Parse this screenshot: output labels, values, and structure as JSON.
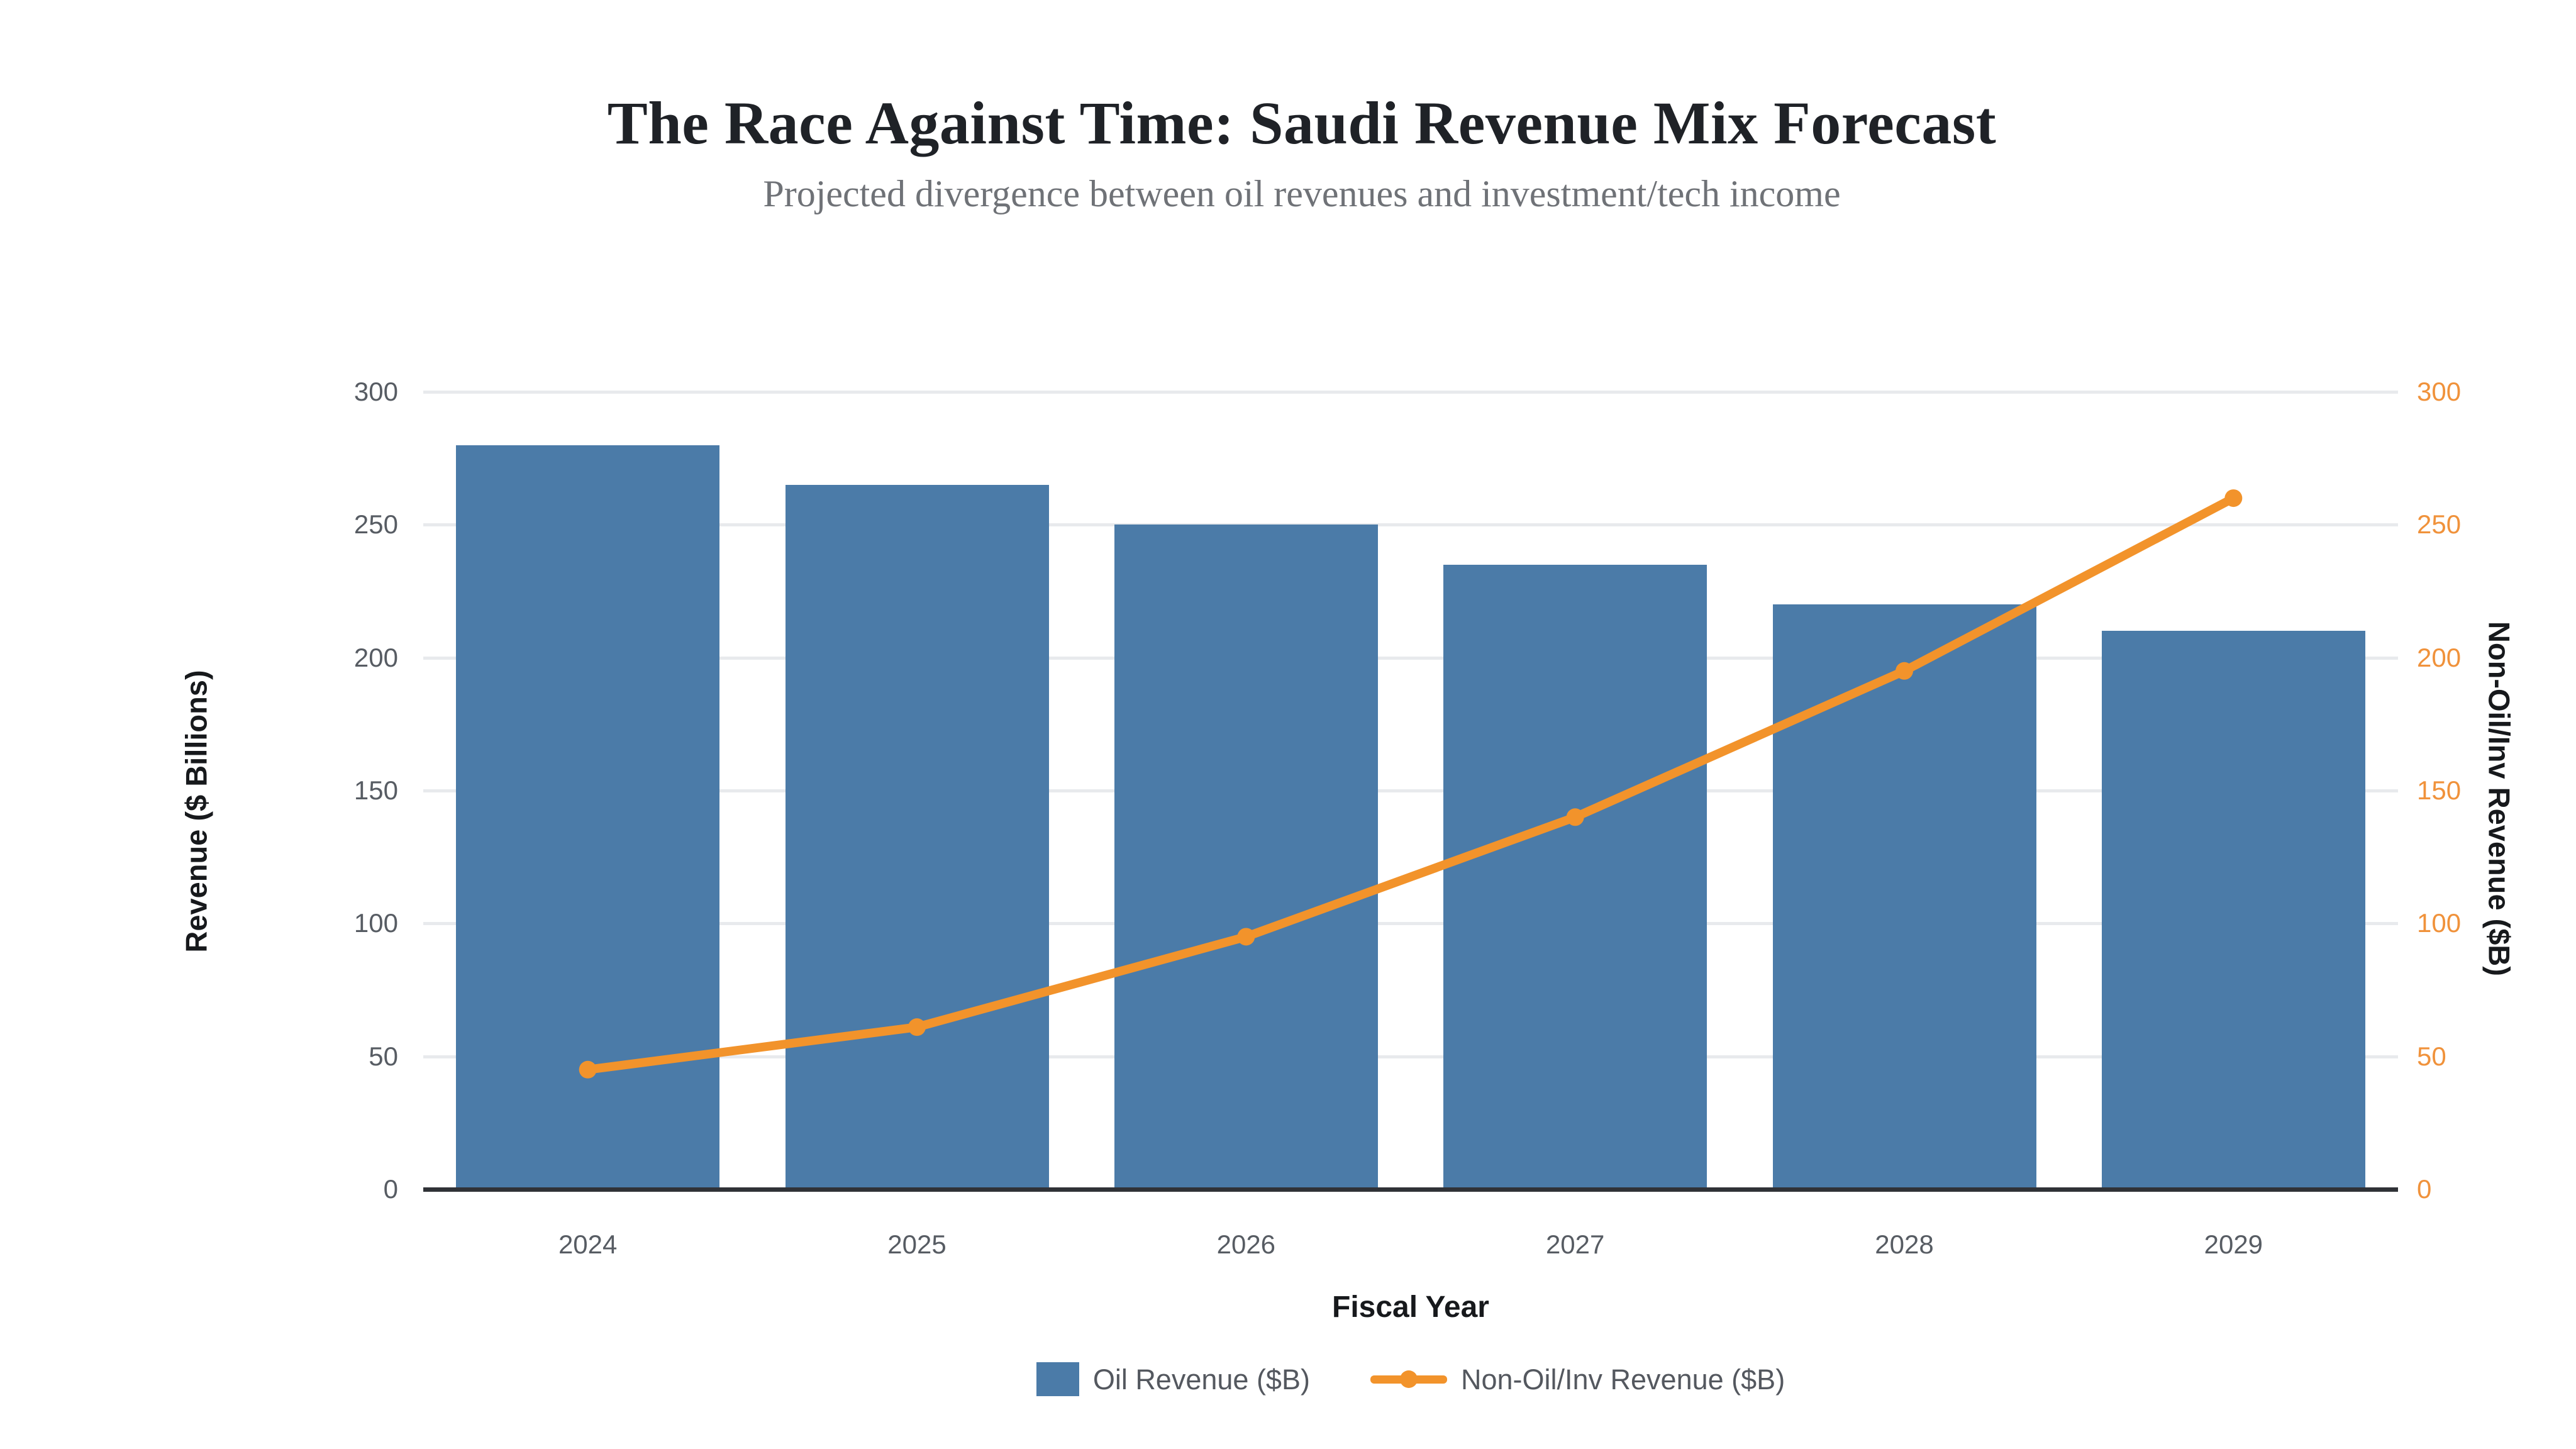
{
  "figure": {
    "title": "The Race Against Time: Saudi Revenue Mix Forecast",
    "subtitle": "Projected divergence between oil revenues and investment/tech income"
  },
  "chart_data": {
    "type": "combo_bar_line",
    "categories": [
      "2024",
      "2025",
      "2026",
      "2027",
      "2028",
      "2029"
    ],
    "series": [
      {
        "name": "Oil Revenue ($B)",
        "type": "bar",
        "axis": "left",
        "color": "#4b7ba8",
        "values": [
          280,
          265,
          250,
          235,
          220,
          210
        ]
      },
      {
        "name": "Non-Oil/Inv Revenue ($B)",
        "type": "line",
        "axis": "right",
        "color": "#f2932b",
        "values": [
          45,
          61,
          95,
          140,
          195,
          260
        ]
      }
    ],
    "title": "The Race Against Time: Saudi Revenue Mix Forecast",
    "subtitle": "Projected divergence between oil revenues and investment/tech income",
    "xlabel": "Fiscal Year",
    "ylabel_left": "Revenue ($ Billions)",
    "ylabel_right": "Non-Oil/Inv Revenue ($B)",
    "yticks_left": [
      0,
      50,
      100,
      150,
      200,
      250,
      300
    ],
    "yticks_right": [
      0,
      50,
      100,
      150,
      200,
      250,
      300
    ],
    "ylim": [
      0,
      300
    ],
    "grid": true,
    "legend_position": "bottom",
    "colors": {
      "bar": "#4b7ba8",
      "line": "#f2932b",
      "gridline": "#e8eaed",
      "axis_line": "#303237",
      "tick_text": "#575c63",
      "right_tick_text": "#f0923b",
      "label_text": "#17191c",
      "title": "#1f2227",
      "subtitle": "#6f7277",
      "legend_text": "#54585f",
      "background": "#ffffff"
    }
  }
}
